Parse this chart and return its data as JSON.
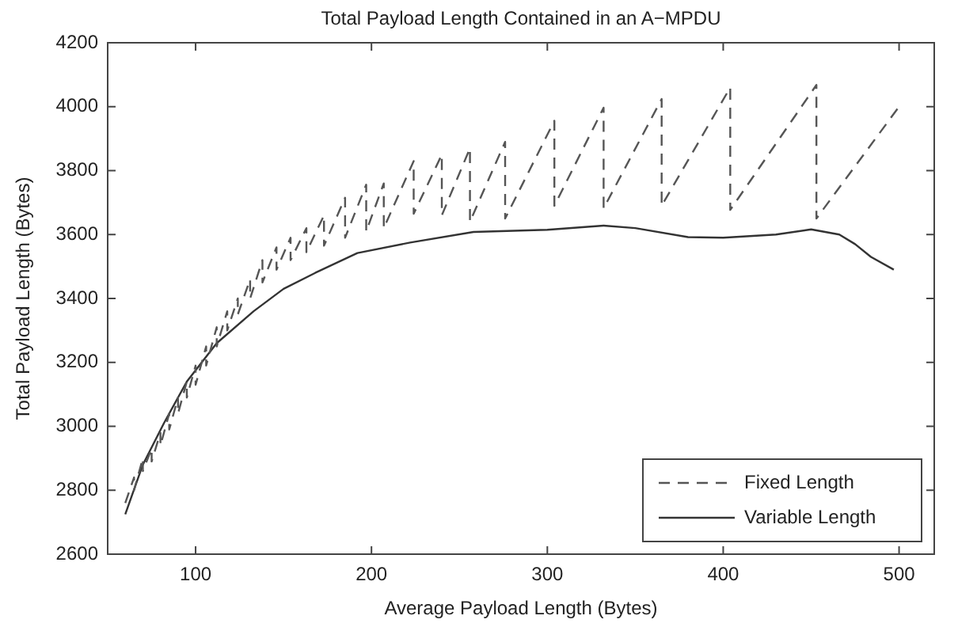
{
  "chart_data": {
    "type": "line",
    "title": "Total Payload Length Contained in an A−MPDU",
    "xlabel": "Average Payload Length (Bytes)",
    "ylabel": "Total Payload Length (Bytes)",
    "xlim": [
      50,
      520
    ],
    "ylim": [
      2600,
      4200
    ],
    "xticks": [
      100,
      200,
      300,
      400,
      500
    ],
    "yticks": [
      2600,
      2800,
      3000,
      3200,
      3400,
      3600,
      3800,
      4000,
      4200
    ],
    "grid": false,
    "legend": "bottom right",
    "marker": "none",
    "series": [
      {
        "name": "Fixed Length",
        "color": "#555555",
        "line_style": "dashed",
        "x": [
          60,
          65,
          65,
          70,
          70,
          75,
          75,
          80,
          80,
          85,
          85,
          90,
          90,
          95,
          95,
          100,
          100,
          106,
          106,
          112,
          112,
          118,
          118,
          124,
          124,
          131,
          131,
          138,
          138,
          146,
          146,
          154,
          154,
          163,
          163,
          173,
          173,
          185,
          185,
          197,
          197,
          207,
          207,
          224,
          224,
          240,
          240,
          256,
          256,
          276,
          276,
          304,
          304,
          332,
          332,
          365,
          365,
          404,
          404,
          453,
          453,
          500
        ],
        "values": [
          2760,
          2840,
          2800,
          2900,
          2860,
          2930,
          2890,
          2980,
          2940,
          3040,
          2990,
          3090,
          3040,
          3140,
          3090,
          3190,
          3130,
          3250,
          3190,
          3310,
          3250,
          3360,
          3300,
          3400,
          3350,
          3460,
          3400,
          3520,
          3450,
          3560,
          3490,
          3590,
          3520,
          3620,
          3545,
          3660,
          3565,
          3715,
          3590,
          3756,
          3610,
          3760,
          3620,
          3830,
          3665,
          3850,
          3660,
          3870,
          3640,
          3890,
          3650,
          3956,
          3690,
          3997,
          3682,
          4024,
          3690,
          4060,
          3677,
          4068,
          3650,
          4000
        ]
      },
      {
        "name": "Variable Length",
        "color": "#333333",
        "line_style": "solid",
        "x": [
          60,
          70,
          82,
          95,
          112,
          133,
          150,
          168,
          192,
          222,
          258,
          300,
          332,
          350,
          380,
          400,
          430,
          450,
          466,
          475,
          484,
          497
        ],
        "values": [
          2725,
          2880,
          3010,
          3140,
          3260,
          3360,
          3430,
          3480,
          3542,
          3575,
          3608,
          3615,
          3628,
          3620,
          3592,
          3590,
          3600,
          3616,
          3600,
          3570,
          3530,
          3490
        ]
      }
    ]
  }
}
